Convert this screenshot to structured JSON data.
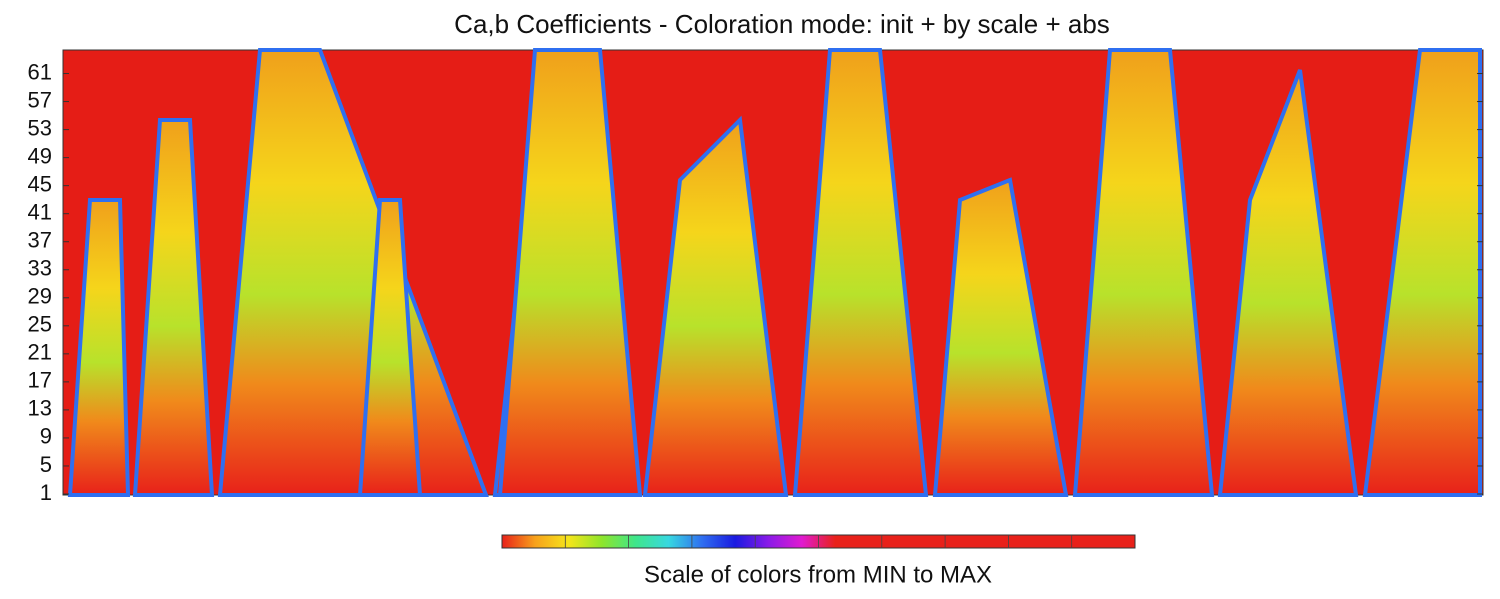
{
  "chart_data": {
    "type": "heatmap",
    "title": "Ca,b Coefficients - Coloration mode: init + by scale + abs",
    "ylim": [
      1,
      64.5
    ],
    "yticks": [
      1,
      5,
      9,
      13,
      17,
      21,
      25,
      29,
      33,
      37,
      41,
      45,
      49,
      53,
      57,
      61
    ],
    "colorbar_label": "Scale of colors from MIN to MAX",
    "colorbar_colors": [
      "#e8211a",
      "#f7a21b",
      "#f5e51b",
      "#8ee52b",
      "#3fe68a",
      "#37d8e0",
      "#2f6ff0",
      "#1a1ae0",
      "#8a1ae8",
      "#e01ad0",
      "#e8211a",
      "#e8211a",
      "#e8211a",
      "#e8211a",
      "#e8211a",
      "#e8211a",
      "#e8211a",
      "#e8211a",
      "#e8211a",
      "#e8211a"
    ]
  }
}
